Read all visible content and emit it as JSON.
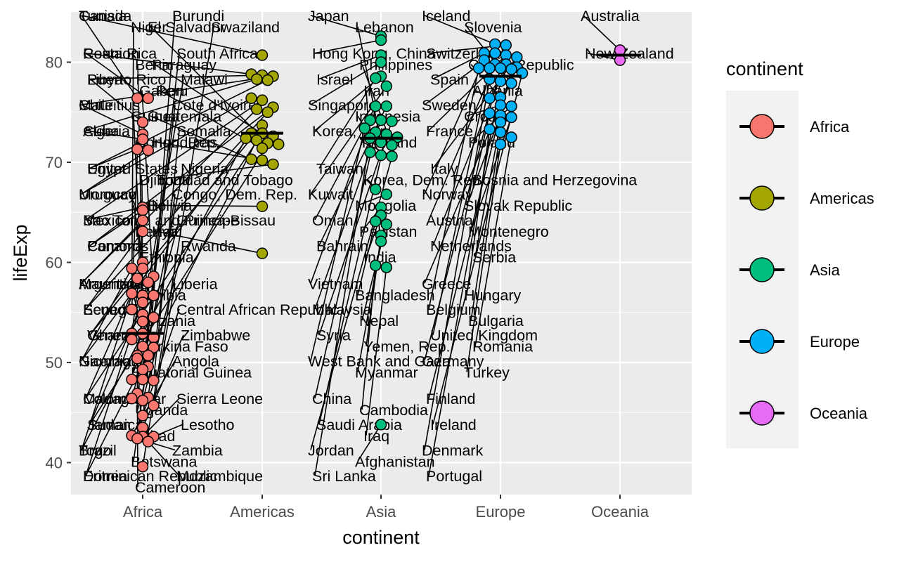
{
  "chart_data": {
    "type": "scatter",
    "xlabel": "continent",
    "ylabel": "lifeExp",
    "categories": [
      "Africa",
      "Americas",
      "Asia",
      "Europe",
      "Oceania"
    ],
    "ylim": [
      37,
      84.5
    ],
    "yticks": [
      40,
      50,
      60,
      70,
      80
    ],
    "grid": true,
    "legend": {
      "title": "continent",
      "position": "right",
      "entries": [
        {
          "name": "Africa",
          "color": "#F8766D"
        },
        {
          "name": "Americas",
          "color": "#A3A500"
        },
        {
          "name": "Asia",
          "color": "#00BF7D"
        },
        {
          "name": "Europe",
          "color": "#00B0F6"
        },
        {
          "name": "Oceania",
          "color": "#E76BF3"
        }
      ]
    },
    "medians": {
      "Africa": 52.9,
      "Americas": 72.9,
      "Asia": 72.4,
      "Europe": 78.6,
      "Oceania": 80.7
    },
    "series": [
      {
        "name": "Africa",
        "points": [
          {
            "label": "Tunisia",
            "y": 76.4
          },
          {
            "label": "Reunion",
            "y": 76.4
          },
          {
            "label": "Libya",
            "y": 74.0
          },
          {
            "label": "Algeria",
            "y": 72.3
          },
          {
            "label": "Mauritius",
            "y": 72.8
          },
          {
            "label": "Morocco",
            "y": 71.2
          },
          {
            "label": "Egypt",
            "y": 71.3
          },
          {
            "label": "Comoros",
            "y": 65.2
          },
          {
            "label": "Sao Tome and Principe",
            "y": 65.5
          },
          {
            "label": "Mauritania",
            "y": 64.2
          },
          {
            "label": "Senegal",
            "y": 63.1
          },
          {
            "label": "Gambia",
            "y": 59.4
          },
          {
            "label": "Madagascar",
            "y": 59.4
          },
          {
            "label": "Sudan",
            "y": 58.6
          },
          {
            "label": "Ghana",
            "y": 60.0
          },
          {
            "label": "Eritrea",
            "y": 58.0
          },
          {
            "label": "Togo",
            "y": 58.4
          },
          {
            "label": "Benin",
            "y": 56.7
          },
          {
            "label": "Gabon",
            "y": 56.7
          },
          {
            "label": "Niger",
            "y": 56.9
          },
          {
            "label": "Congo, Rep.",
            "y": 55.3
          },
          {
            "label": "Guinea",
            "y": 56.0
          },
          {
            "label": "Mali",
            "y": 54.5
          },
          {
            "label": "Djibouti",
            "y": 54.8
          },
          {
            "label": "Kenya",
            "y": 54.1
          },
          {
            "label": "Ethiopia",
            "y": 52.9
          },
          {
            "label": "Namibia",
            "y": 52.9
          },
          {
            "label": "Burkina Faso",
            "y": 52.3
          },
          {
            "label": "Chad",
            "y": 50.7
          },
          {
            "label": "Tanzania",
            "y": 52.5
          },
          {
            "label": "Uganda",
            "y": 51.5
          },
          {
            "label": "Equatorial Guinea",
            "y": 51.6
          },
          {
            "label": "Burundi",
            "y": 49.6
          },
          {
            "label": "Cameroon",
            "y": 50.4
          },
          {
            "label": "Malawi",
            "y": 48.3
          },
          {
            "label": "Botswana",
            "y": 50.7
          },
          {
            "label": "Cote d'Ivoire",
            "y": 48.3
          },
          {
            "label": "South Africa",
            "y": 49.3
          },
          {
            "label": "Nigeria",
            "y": 46.9
          },
          {
            "label": "Somalia",
            "y": 48.2
          },
          {
            "label": "Central African Republic",
            "y": 44.7
          },
          {
            "label": "Congo, Dem. Rep.",
            "y": 46.5
          },
          {
            "label": "Guinea-Bissau",
            "y": 46.4
          },
          {
            "label": "Liberia",
            "y": 45.7
          },
          {
            "label": "Angola",
            "y": 42.7
          },
          {
            "label": "Zambia",
            "y": 42.4
          },
          {
            "label": "Sierra Leone",
            "y": 42.6
          },
          {
            "label": "Mozambique",
            "y": 42.1
          },
          {
            "label": "Rwanda",
            "y": 46.2
          },
          {
            "label": "Lesotho",
            "y": 42.6
          },
          {
            "label": "Zimbabwe",
            "y": 43.5
          },
          {
            "label": "Swaziland",
            "y": 39.6
          }
        ]
      },
      {
        "name": "Americas",
        "points": [
          {
            "label": "Canada",
            "y": 80.7
          },
          {
            "label": "Costa Rica",
            "y": 78.8
          },
          {
            "label": "Puerto Rico",
            "y": 78.7
          },
          {
            "label": "Chile",
            "y": 78.6
          },
          {
            "label": "Cuba",
            "y": 78.3
          },
          {
            "label": "United States",
            "y": 78.2
          },
          {
            "label": "Mexico",
            "y": 76.2
          },
          {
            "label": "Uruguay",
            "y": 76.4
          },
          {
            "label": "Panama",
            "y": 75.5
          },
          {
            "label": "Argentina",
            "y": 75.3
          },
          {
            "label": "Ecuador",
            "y": 75.0
          },
          {
            "label": "Venezuela",
            "y": 73.7
          },
          {
            "label": "Nicaragua",
            "y": 72.9
          },
          {
            "label": "Brazil",
            "y": 72.4
          },
          {
            "label": "Colombia",
            "y": 72.9
          },
          {
            "label": "Dominican Republic",
            "y": 72.2
          },
          {
            "label": "El Salvador",
            "y": 71.9
          },
          {
            "label": "Paraguay",
            "y": 71.8
          },
          {
            "label": "Jamaica",
            "y": 72.6
          },
          {
            "label": "Peru",
            "y": 71.4
          },
          {
            "label": "Honduras",
            "y": 70.2
          },
          {
            "label": "Trinidad and Tobago",
            "y": 69.8
          },
          {
            "label": "Guatemala",
            "y": 70.3
          },
          {
            "label": "Bolivia",
            "y": 65.6
          },
          {
            "label": "Haiti",
            "y": 60.9
          }
        ]
      },
      {
        "name": "Asia",
        "points": [
          {
            "label": "Japan",
            "y": 82.6
          },
          {
            "label": "Hong Kong, China",
            "y": 82.2
          },
          {
            "label": "Israel",
            "y": 80.7
          },
          {
            "label": "Singapore",
            "y": 80.0
          },
          {
            "label": "Korea, Rep.",
            "y": 78.6
          },
          {
            "label": "Taiwan",
            "y": 78.4
          },
          {
            "label": "Kuwait",
            "y": 77.6
          },
          {
            "label": "Oman",
            "y": 75.6
          },
          {
            "label": "Bahrain",
            "y": 75.6
          },
          {
            "label": "Vietnam",
            "y": 74.2
          },
          {
            "label": "Malaysia",
            "y": 74.2
          },
          {
            "label": "Syria",
            "y": 74.1
          },
          {
            "label": "West Bank and Gaza",
            "y": 73.4
          },
          {
            "label": "China",
            "y": 73.0
          },
          {
            "label": "Saudi Arabia",
            "y": 72.8
          },
          {
            "label": "Sri Lanka",
            "y": 72.4
          },
          {
            "label": "Philippines",
            "y": 71.7
          },
          {
            "label": "Iran",
            "y": 71.0
          },
          {
            "label": "Jordan",
            "y": 72.5
          },
          {
            "label": "Lebanon",
            "y": 72.0
          },
          {
            "label": "Indonesia",
            "y": 70.7
          },
          {
            "label": "Korea, Dem. Rep.",
            "y": 67.3
          },
          {
            "label": "Thailand",
            "y": 70.6
          },
          {
            "label": "Mongolia",
            "y": 66.8
          },
          {
            "label": "Pakistan",
            "y": 65.5
          },
          {
            "label": "India",
            "y": 64.7
          },
          {
            "label": "Bangladesh",
            "y": 64.1
          },
          {
            "label": "Yemen, Rep.",
            "y": 62.7
          },
          {
            "label": "Nepal",
            "y": 63.8
          },
          {
            "label": "Myanmar",
            "y": 62.1
          },
          {
            "label": "Cambodia",
            "y": 59.7
          },
          {
            "label": "Iraq",
            "y": 59.5
          },
          {
            "label": "Afghanistan",
            "y": 43.8
          }
        ]
      },
      {
        "name": "Europe",
        "points": [
          {
            "label": "Iceland",
            "y": 81.8
          },
          {
            "label": "Switzerland",
            "y": 81.7
          },
          {
            "label": "Spain",
            "y": 80.9
          },
          {
            "label": "Sweden",
            "y": 80.9
          },
          {
            "label": "France",
            "y": 80.7
          },
          {
            "label": "Italy",
            "y": 80.5
          },
          {
            "label": "Norway",
            "y": 80.2
          },
          {
            "label": "Austria",
            "y": 79.8
          },
          {
            "label": "Netherlands",
            "y": 79.8
          },
          {
            "label": "Greece",
            "y": 79.5
          },
          {
            "label": "Belgium",
            "y": 79.4
          },
          {
            "label": "United Kingdom",
            "y": 79.4
          },
          {
            "label": "Germany",
            "y": 79.4
          },
          {
            "label": "Finland",
            "y": 79.3
          },
          {
            "label": "Ireland",
            "y": 78.9
          },
          {
            "label": "Denmark",
            "y": 78.3
          },
          {
            "label": "Portugal",
            "y": 78.1
          },
          {
            "label": "Slovenia",
            "y": 77.9
          },
          {
            "label": "Czech Republic",
            "y": 76.5
          },
          {
            "label": "Albania",
            "y": 76.4
          },
          {
            "label": "Croatia",
            "y": 75.7
          },
          {
            "label": "Poland",
            "y": 75.6
          },
          {
            "label": "Bosnia and Herzegovina",
            "y": 74.9
          },
          {
            "label": "Slovak Republic",
            "y": 74.7
          },
          {
            "label": "Montenegro",
            "y": 74.5
          },
          {
            "label": "Serbia",
            "y": 74.0
          },
          {
            "label": "Hungary",
            "y": 73.3
          },
          {
            "label": "Bulgaria",
            "y": 73.0
          },
          {
            "label": "Romania",
            "y": 72.5
          },
          {
            "label": "Turkey",
            "y": 71.8
          }
        ]
      },
      {
        "name": "Oceania",
        "points": [
          {
            "label": "Australia",
            "y": 81.2
          },
          {
            "label": "New Zealand",
            "y": 80.2
          }
        ]
      }
    ]
  }
}
